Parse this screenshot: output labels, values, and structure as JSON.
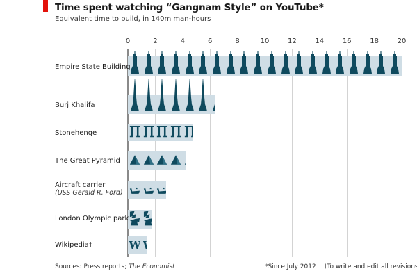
{
  "header": {
    "title": "Time spent watching “Gangnam Style” on YouTube*",
    "subtitle": "Equivalent time to build, in 140m man-hours",
    "accent_color": "#e3120b"
  },
  "footer": {
    "sources_prefix": "Sources: Press reports; ",
    "sources_italic": "The Economist",
    "note1": "*Since July 2012",
    "note2": "†To write and edit all revisions"
  },
  "chart_data": {
    "type": "bar",
    "orientation": "horizontal",
    "title": "Time spent watching “Gangnam Style” on YouTube*",
    "subtitle": "Equivalent time to build, in 140m man-hours",
    "xlabel": "",
    "ylabel": "",
    "xlim": [
      0,
      20
    ],
    "xticks": [
      0,
      2,
      4,
      6,
      8,
      10,
      12,
      14,
      16,
      18,
      20
    ],
    "grid": true,
    "legend": null,
    "bar_color": "#cfdde5",
    "icon_color": "#0f4a5e",
    "categories": [
      "Empire State Building",
      "Burj Khalifa",
      "Stonehenge",
      "The Great Pyramid",
      "Aircraft carrier (USS Gerald R. Ford)",
      "London Olympic park",
      "Wikipedia†"
    ],
    "values": [
      20,
      6.4,
      4.7,
      4.2,
      2.8,
      1.8,
      1.4
    ],
    "annotations": [
      "*Since July 2012",
      "†To write and edit all revisions"
    ]
  },
  "rows": [
    {
      "label": "Empire State Building",
      "sub": "",
      "value": 20,
      "icon": "skyscraper-icon"
    },
    {
      "label": "Burj Khalifa",
      "sub": "",
      "value": 6.4,
      "icon": "spire-tower-icon"
    },
    {
      "label": "Stonehenge",
      "sub": "",
      "value": 4.7,
      "icon": "trilithon-icon"
    },
    {
      "label": "The Great Pyramid",
      "sub": "",
      "value": 4.2,
      "icon": "pyramid-icon"
    },
    {
      "label": "Aircraft carrier",
      "sub": "(USS Gerald R. Ford)",
      "value": 2.8,
      "icon": "ship-icon"
    },
    {
      "label": "London Olympic park",
      "sub": "",
      "value": 1.8,
      "icon": "olympic-logo-icon"
    },
    {
      "label": "Wikipedia†",
      "sub": "",
      "value": 1.4,
      "icon": "wikipedia-w-icon"
    }
  ]
}
